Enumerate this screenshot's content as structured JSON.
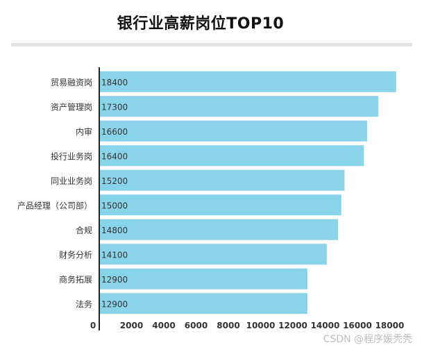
{
  "chart_data": {
    "type": "bar",
    "orientation": "horizontal",
    "title": "银行业高薪岗位TOP10",
    "categories": [
      "贸易融资岗",
      "资产管理岗",
      "内审",
      "投行业务岗",
      "同业业务岗",
      "产品经理（公司部）",
      "合规",
      "财务分析",
      "商务拓展",
      "法务"
    ],
    "values": [
      18400,
      17300,
      16600,
      16400,
      15200,
      15000,
      14800,
      14100,
      12900,
      12900
    ],
    "xticks": [
      0,
      2000,
      4000,
      6000,
      8000,
      10000,
      12000,
      14000,
      16000,
      18000
    ],
    "xlim": [
      0,
      19400
    ],
    "xlabel": "",
    "ylabel": "",
    "bar_color": "#8ad4ea",
    "label_color": "#333333",
    "grid": false,
    "data_labels": "inside-left"
  },
  "watermark": "CSDN @程序媛秃秃"
}
